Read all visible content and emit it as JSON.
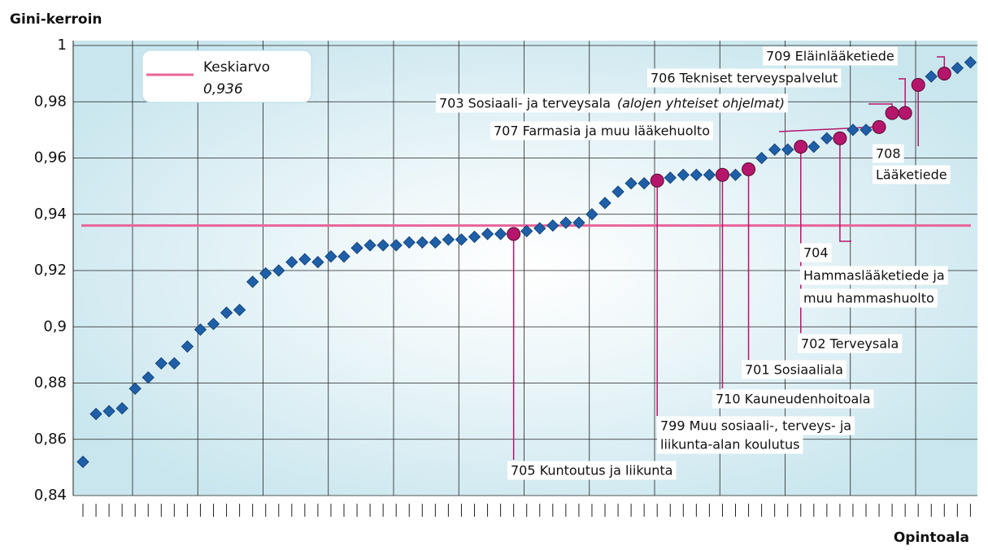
{
  "chart_data": {
    "type": "scatter",
    "y_label": "Gini-kerroin",
    "x_label": "Opintoala",
    "categories": [
      null,
      null,
      null,
      null,
      null,
      null,
      null,
      null,
      null,
      null,
      null,
      null,
      null,
      null,
      null,
      null,
      null,
      null,
      null,
      null,
      null,
      null,
      null,
      null,
      null,
      null,
      null,
      null,
      null,
      null,
      null,
      null,
      null,
      null,
      null,
      null,
      null,
      null,
      null,
      null,
      null,
      null,
      null,
      null,
      null,
      null,
      null,
      null,
      null,
      null,
      null,
      null,
      null,
      null,
      null,
      null,
      null,
      null,
      null,
      null,
      null,
      null,
      null,
      null,
      null,
      null,
      null,
      null,
      null
    ],
    "values": [
      0.852,
      0.869,
      0.87,
      0.871,
      0.878,
      0.882,
      0.887,
      0.887,
      0.893,
      0.899,
      0.901,
      0.905,
      0.906,
      0.916,
      0.919,
      0.92,
      0.923,
      0.924,
      0.923,
      0.925,
      0.925,
      0.928,
      0.929,
      0.929,
      0.929,
      0.93,
      0.93,
      0.93,
      0.931,
      0.931,
      0.932,
      0.933,
      0.933,
      0.933,
      0.934,
      0.935,
      0.936,
      0.937,
      0.937,
      0.94,
      0.944,
      0.948,
      0.951,
      0.951,
      0.952,
      0.953,
      0.954,
      0.954,
      0.954,
      0.954,
      0.954,
      0.956,
      0.96,
      0.963,
      0.963,
      0.964,
      0.964,
      0.967,
      0.967,
      0.97,
      0.97,
      0.971,
      0.976,
      0.976,
      0.986,
      0.989,
      0.99,
      0.992,
      0.994
    ],
    "color": "#1f5fa8",
    "highlight_color": "#b5166b",
    "ylim": [
      0.84,
      1
    ],
    "yticks": [
      {
        "value": 0.84,
        "label": "0,84"
      },
      {
        "value": 0.86,
        "label": "0,86"
      },
      {
        "value": 0.88,
        "label": "0,88"
      },
      {
        "value": 0.9,
        "label": "0,9"
      },
      {
        "value": 0.92,
        "label": "0,92"
      },
      {
        "value": 0.94,
        "label": "0,94"
      },
      {
        "value": 0.96,
        "label": "0,96"
      },
      {
        "value": 0.98,
        "label": "0,98"
      },
      1
    ],
    "grid": true,
    "mean": {
      "name": "Keskiarvo",
      "value": 0.936,
      "label": "0,936",
      "color": "#e8649a"
    },
    "annotations": [
      {
        "index": 33,
        "lines": [
          "705  Kuntoutus ja liikunta"
        ]
      },
      {
        "index": 44,
        "lines": [
          "799  Muu sosiaali-, terveys- ja",
          "liikunta-alan koulutus"
        ]
      },
      {
        "index": 49,
        "lines": [
          "710  Kauneudenhoitoala"
        ]
      },
      {
        "index": 51,
        "lines": [
          "701  Sosiaaliala"
        ]
      },
      {
        "index": 55,
        "lines": [
          "702  Terveysala"
        ]
      },
      {
        "index": 58,
        "lines": [
          "704",
          "Hammaslääketiede ja",
          "muu hammashuolto"
        ]
      },
      {
        "index": 61,
        "lines": [
          "707 Farmasia ja muu lääkehuolto"
        ]
      },
      {
        "index": 62,
        "lines": [
          "703  Sosiaali- ja terveysala"
        ],
        "note": "(alojen yhteiset ohjelmat)"
      },
      {
        "index": 63,
        "lines": [
          "706  Tekniset terveyspalvelut"
        ]
      },
      {
        "index": 64,
        "lines": [
          "708",
          "Lääketiede"
        ]
      },
      {
        "index": 66,
        "lines": [
          "709  Eläinlääketiede"
        ]
      }
    ]
  }
}
